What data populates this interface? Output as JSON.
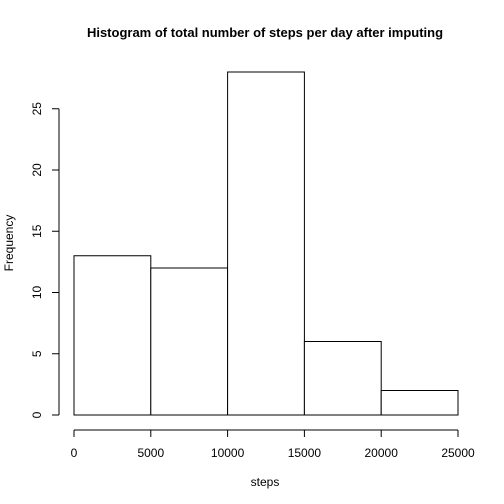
{
  "chart_data": {
    "type": "bar",
    "title": "Histogram of total number of steps per day after imputing",
    "xlabel": "steps",
    "ylabel": "Frequency",
    "bins": [
      {
        "start": 0,
        "end": 5000,
        "count": 13
      },
      {
        "start": 5000,
        "end": 10000,
        "count": 12
      },
      {
        "start": 10000,
        "end": 15000,
        "count": 28
      },
      {
        "start": 15000,
        "end": 20000,
        "count": 6
      },
      {
        "start": 20000,
        "end": 25000,
        "count": 2
      }
    ],
    "xlim": [
      0,
      25000
    ],
    "ylim": [
      0,
      28
    ],
    "xticks": [
      0,
      5000,
      10000,
      15000,
      20000,
      25000
    ],
    "yticks": [
      0,
      5,
      10,
      15,
      20,
      25
    ],
    "grid": false,
    "bar_fill": "#ffffff",
    "bar_stroke": "#000000"
  }
}
